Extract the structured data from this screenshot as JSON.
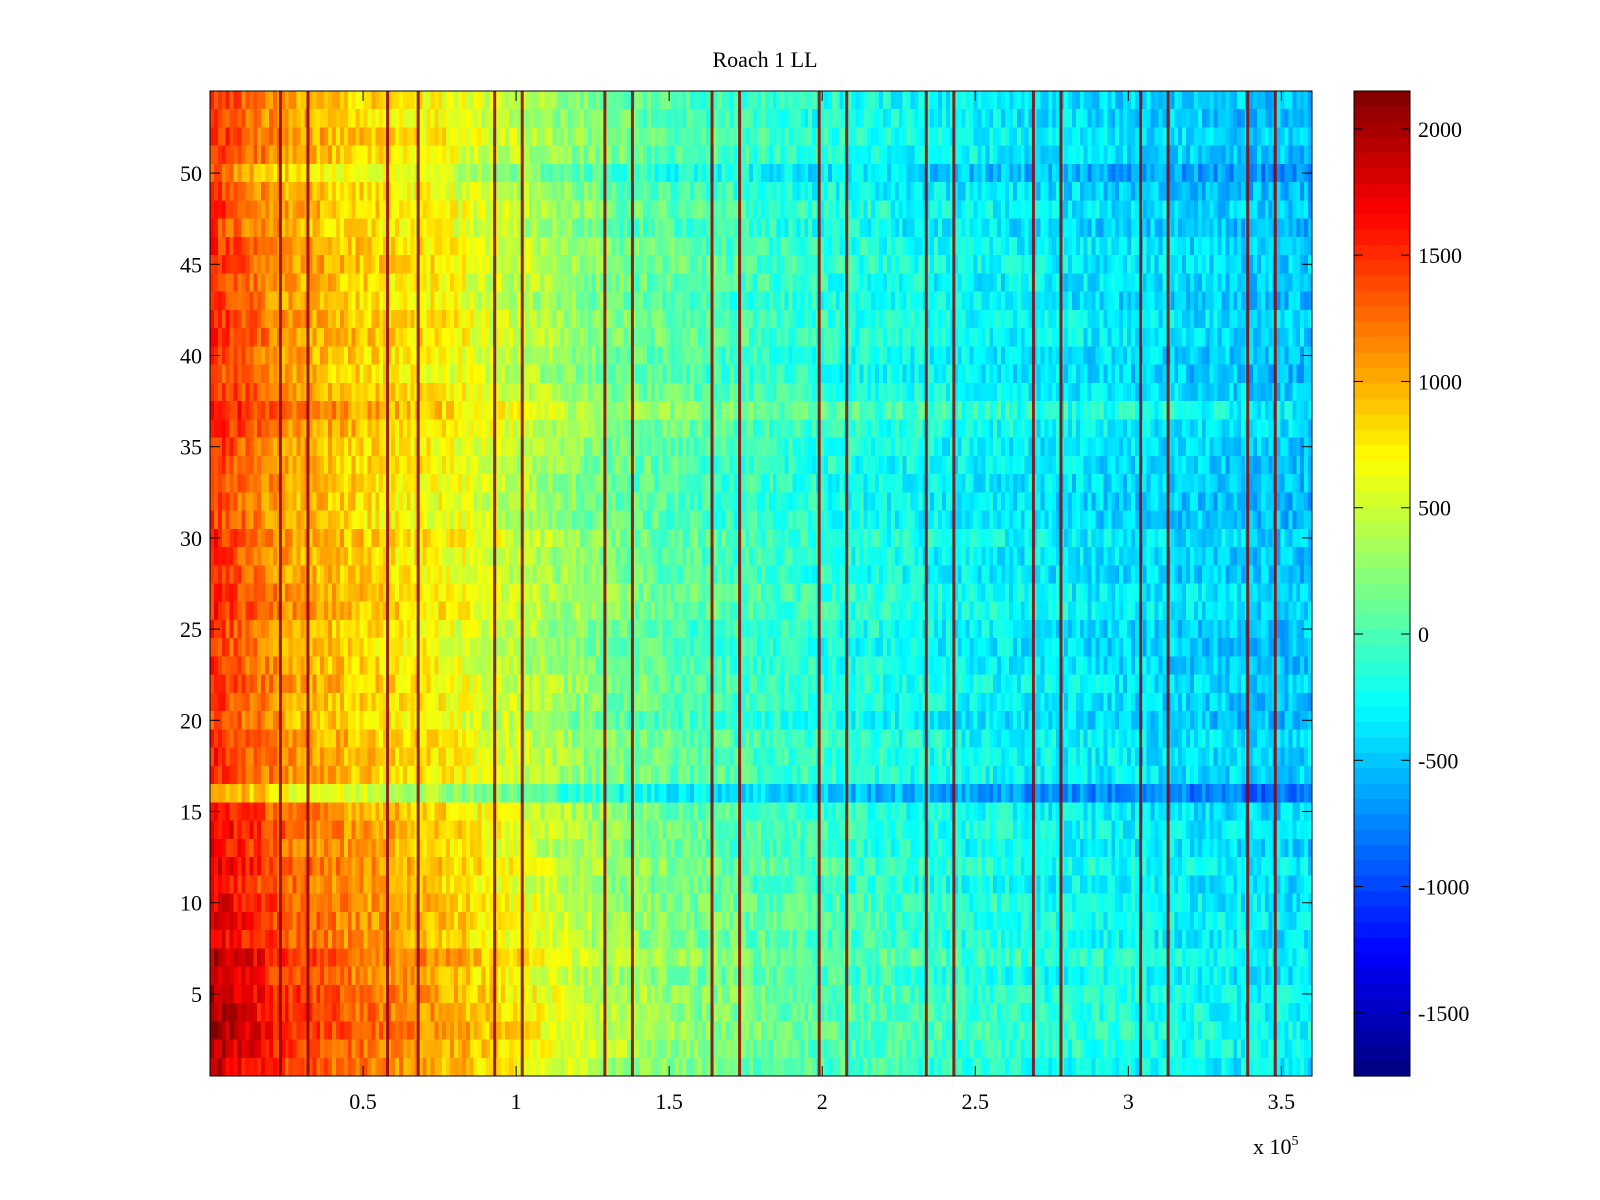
{
  "chart_data": {
    "type": "heatmap",
    "title": "Roach 1 LL",
    "xlabel": "",
    "ylabel": "",
    "x_multiplier_label": "x 10",
    "x_multiplier_exponent": "5",
    "xlim": [
      0,
      3.6
    ],
    "ylim": [
      0.5,
      54.5
    ],
    "x_ticks": [
      0.5,
      1,
      1.5,
      2,
      2.5,
      3,
      3.5
    ],
    "x_tick_labels": [
      "0.5",
      "1",
      "1.5",
      "2",
      "2.5",
      "3",
      "3.5"
    ],
    "y_ticks": [
      5,
      10,
      15,
      20,
      25,
      30,
      35,
      40,
      45,
      50
    ],
    "y_tick_labels": [
      "5",
      "10",
      "15",
      "20",
      "25",
      "30",
      "35",
      "40",
      "45",
      "50"
    ],
    "rows": 54,
    "colormap": "jet",
    "color_range": [
      -1750,
      2150
    ],
    "colorbar_ticks": [
      2000,
      1500,
      1000,
      500,
      0,
      -500,
      -1000,
      -1500
    ],
    "colorbar_tick_labels": [
      "2000",
      "1500",
      "1000",
      "500",
      "0",
      "-500",
      "-1000",
      "-1500"
    ],
    "column_trend": {
      "x": [
        0.0,
        0.25,
        0.5,
        0.75,
        1.0,
        1.25,
        1.5,
        2.0,
        2.5,
        3.0,
        3.5,
        3.6
      ],
      "value": [
        1500,
        1050,
        850,
        700,
        450,
        200,
        50,
        -150,
        -300,
        -400,
        -500,
        -500
      ]
    },
    "row_offsets": [
      {
        "rows": [
          1,
          7
        ],
        "offset": 450
      },
      {
        "rows": [
          8,
          15
        ],
        "offset": 250
      },
      {
        "rows": [
          16,
          16
        ],
        "offset": -300
      },
      {
        "rows": [
          37,
          37
        ],
        "offset": 200
      },
      {
        "rows": [
          50,
          50
        ],
        "offset": -250
      }
    ],
    "stripe_positions_x": [
      0.23,
      0.32,
      0.58,
      0.68,
      0.93,
      1.02,
      1.29,
      1.38,
      1.64,
      1.73,
      1.99,
      2.08,
      2.34,
      2.43,
      2.69,
      2.78,
      3.04,
      3.13,
      3.39,
      3.48
    ],
    "stripe_value": 2100
  }
}
